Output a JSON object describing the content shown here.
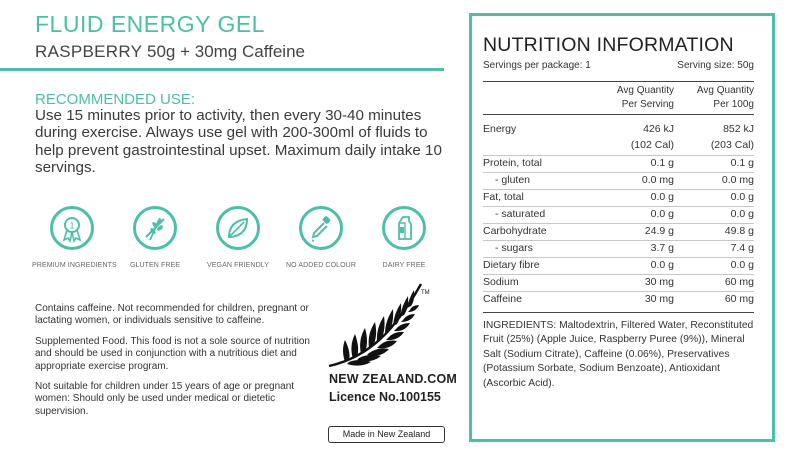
{
  "product": {
    "name": "FLUID ENERGY GEL",
    "flavor": "RASPBERRY",
    "details": "50g + 30mg Caffeine"
  },
  "recommended_use": {
    "heading": "RECOMMENDED USE:",
    "text": "Use 15 minutes prior to activity, then every 30-40 minutes during exercise. Always use gel with 200-300ml of fluids to help prevent gastrointestinal upset. Maximum daily intake 10 servings."
  },
  "badges": [
    {
      "label": "PREMIUM INGREDIENTS",
      "icon": "award-ribbon-icon"
    },
    {
      "label": "GLUTEN FREE",
      "icon": "wheat-icon"
    },
    {
      "label": "VEGAN FRIENDLY",
      "icon": "leaf-icon"
    },
    {
      "label": "NO ADDED COLOUR",
      "icon": "dropper-icon"
    },
    {
      "label": "DAIRY FREE",
      "icon": "milk-carton-icon"
    }
  ],
  "warnings": [
    "Contains caffeine. Not recommended for children, pregnant or lactating women, or individuals sensitive to caffeine.",
    "Supplemented Food. This food is not a sole source of nutrition and should be used in conjunction with a nutritious diet and appropriate exercise program.",
    "Not suitable for children under 15 years of age or pregnant women: Should only be used under medical or dietetic supervision."
  ],
  "nz": {
    "brand": "NEW ZEALAND.COM",
    "licence": "Licence No.100155",
    "made_in": "Made in New Zealand"
  },
  "nutrition": {
    "title": "NUTRITION INFORMATION",
    "servings_per_package": "Servings per package: 1",
    "serving_size": "Serving size: 50g",
    "col_serving": [
      "Avg Quantity",
      "Per Serving"
    ],
    "col_100g": [
      "Avg Quantity",
      "Per 100g"
    ],
    "rows": [
      {
        "name": "Energy",
        "serving": "426 kJ",
        "per100": "852 kJ"
      },
      {
        "name": "",
        "serving": "(102 Cal)",
        "per100": "(203 Cal)"
      },
      {
        "name": "Protein, total",
        "serving": "0.1 g",
        "per100": "0.1 g"
      },
      {
        "name": "- gluten",
        "serving": "0.0 mg",
        "per100": "0.0 mg"
      },
      {
        "name": "Fat, total",
        "serving": "0.0 g",
        "per100": "0.0 g"
      },
      {
        "name": "- saturated",
        "serving": "0.0 g",
        "per100": "0.0 g"
      },
      {
        "name": "Carbohydrate",
        "serving": "24.9 g",
        "per100": "49.8 g"
      },
      {
        "name": "- sugars",
        "serving": "3.7 g",
        "per100": "7.4 g"
      },
      {
        "name": "Dietary fibre",
        "serving": "0.0 g",
        "per100": "0.0 g"
      },
      {
        "name": "Sodium",
        "serving": "30 mg",
        "per100": "60 mg"
      },
      {
        "name": "Caffeine",
        "serving": "30 mg",
        "per100": "60 mg"
      }
    ],
    "ingredients": "INGREDIENTS: Maltodextrin, Filtered Water, Reconstituted Fruit (25%) (Apple Juice, Raspberry Puree (9%)), Mineral Salt (Sodium Citrate), Caffeine (0.06%), Preservatives (Potassium Sorbate, Sodium Benzoate), Antioxidant (Ascorbic Acid)."
  },
  "colors": {
    "accent": "#4dbfa6",
    "text": "#333333"
  }
}
